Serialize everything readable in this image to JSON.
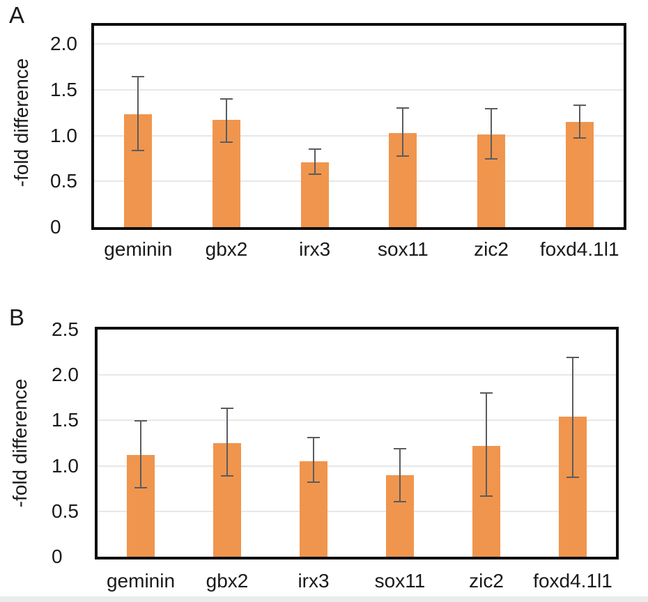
{
  "page": {
    "background": "#FFFFFF"
  },
  "styles": {
    "bar_color": "#F0954D",
    "error_bar_color": "#595C61",
    "gridline_color": "#E7E7E7",
    "frame_color": "#0D0D0D",
    "text_color": "#1A1A1A",
    "bottom_strip_color": "#EBEBEB"
  },
  "chart_data": [
    {
      "type": "bar",
      "panel_label": "A",
      "title": "",
      "xlabel": "",
      "ylabel": "-fold difference",
      "categories": [
        "geminin",
        "gbx2",
        "irx3",
        "sox11",
        "zic2",
        "foxd4.1l1"
      ],
      "values": [
        1.23,
        1.17,
        0.71,
        1.03,
        1.01,
        1.15
      ],
      "error_low": [
        0.83,
        0.92,
        0.57,
        0.77,
        0.74,
        0.97
      ],
      "error_high": [
        1.65,
        1.41,
        0.86,
        1.31,
        1.3,
        1.34
      ],
      "ylim": [
        0,
        2.2
      ],
      "ytick_values": [
        0,
        0.5,
        1.0,
        1.5,
        2.0
      ],
      "yticks": [
        "0",
        "0.5",
        "1.0",
        "1.5",
        "2.0"
      ],
      "gridline_values": [
        0.5,
        1.0,
        1.5,
        2.0
      ],
      "grid": true,
      "legend": false,
      "bar_orientation": "vertical",
      "error_bars": true
    },
    {
      "type": "bar",
      "panel_label": "B",
      "title": "",
      "xlabel": "",
      "ylabel": "-fold difference",
      "categories": [
        "geminin",
        "gbx2",
        "irx3",
        "sox11",
        "zic2",
        "foxd4.1l1"
      ],
      "values": [
        1.12,
        1.25,
        1.05,
        0.9,
        1.22,
        1.54
      ],
      "error_low": [
        0.75,
        0.88,
        0.81,
        0.6,
        0.66,
        0.87
      ],
      "error_high": [
        1.5,
        1.64,
        1.32,
        1.2,
        1.81,
        2.2
      ],
      "ylim": [
        0,
        2.5
      ],
      "ytick_values": [
        0,
        0.5,
        1.0,
        1.5,
        2.0,
        2.5
      ],
      "yticks": [
        "0",
        "0.5",
        "1.0",
        "1.5",
        "2.0",
        "2.5"
      ],
      "gridline_values": [
        0.5,
        1.0,
        1.5,
        2.0
      ],
      "grid": true,
      "legend": false,
      "bar_orientation": "vertical",
      "error_bars": true
    }
  ]
}
